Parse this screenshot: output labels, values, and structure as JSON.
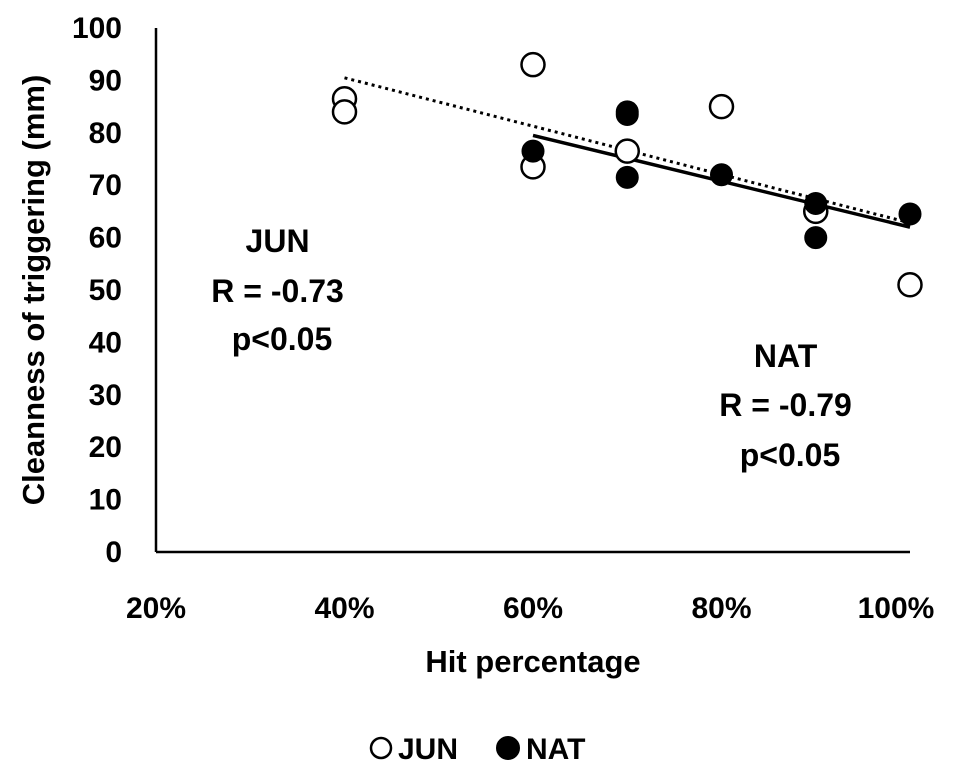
{
  "chart_data": {
    "type": "scatter",
    "xlabel": "Hit percentage",
    "ylabel": "Cleanness of triggering (mm)",
    "xlim": [
      20,
      100
    ],
    "ylim": [
      0,
      100
    ],
    "x_ticks": [
      "20%",
      "40%",
      "60%",
      "80%",
      "100%"
    ],
    "y_ticks": [
      "0",
      "10",
      "20",
      "30",
      "40",
      "50",
      "60",
      "70",
      "80",
      "90",
      "100"
    ],
    "grid": false,
    "legend_position": "bottom",
    "series": [
      {
        "name": "JUN",
        "marker": "open-circle",
        "color": "#000000",
        "points": [
          [
            40,
            86.5
          ],
          [
            40,
            84
          ],
          [
            60,
            93
          ],
          [
            60,
            73.5
          ],
          [
            70,
            76.5
          ],
          [
            80,
            85
          ],
          [
            90,
            65
          ],
          [
            100,
            51
          ]
        ],
        "trendline": {
          "style": "dotted",
          "x": [
            40,
            100
          ],
          "y": [
            90.5,
            62.8
          ]
        }
      },
      {
        "name": "NAT",
        "marker": "filled-circle",
        "color": "#000000",
        "points": [
          [
            60,
            76.5
          ],
          [
            70,
            84
          ],
          [
            70,
            83.5
          ],
          [
            70,
            71.5
          ],
          [
            80,
            72
          ],
          [
            90,
            66.5
          ],
          [
            90,
            60
          ],
          [
            100,
            64.5
          ]
        ],
        "trendline": {
          "style": "solid",
          "x": [
            60,
            100
          ],
          "y": [
            79.5,
            62
          ]
        }
      }
    ],
    "annotations": [
      {
        "id": "jun",
        "lines": [
          "JUN",
          "R = -0.73",
          "p<0.05"
        ]
      },
      {
        "id": "nat",
        "lines": [
          "NAT",
          "R = -0.79",
          "p<0.05"
        ]
      }
    ]
  }
}
